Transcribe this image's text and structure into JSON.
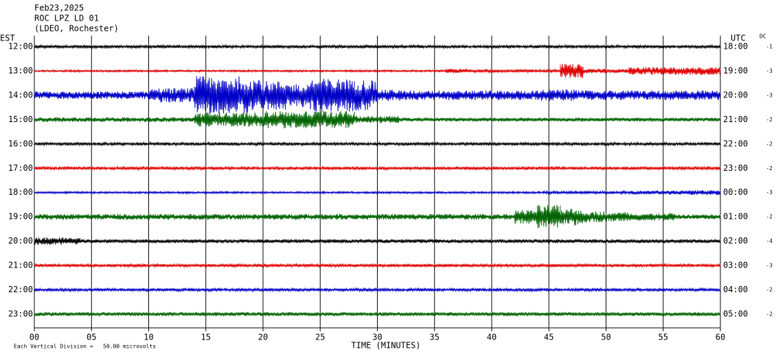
{
  "chart_data": {
    "type": "helicorder",
    "date": "Feb23,2025",
    "station": "ROC LPZ LD 01",
    "network": "(LDEO, Rochester)",
    "left_axis_label": "EST",
    "right_axis_label": "UTC",
    "dc_label": "DC",
    "x_label": "TIME (MINUTES)",
    "scale_note": "Each Vertical Division =   50.00 microvolts",
    "xlim": [
      0,
      60
    ],
    "xticks": [
      {
        "value": 0,
        "label": "00"
      },
      {
        "value": 5,
        "label": "05"
      },
      10,
      15,
      20,
      25,
      30,
      35,
      40,
      45,
      50,
      55,
      60
    ],
    "grid": true,
    "rows": [
      {
        "est": "12:00",
        "utc": "18:00",
        "dc": -1,
        "color": "#000000",
        "values": [
          3,
          3,
          3,
          3,
          3,
          3,
          3,
          3,
          3,
          3,
          3,
          3,
          3,
          3,
          3,
          3,
          3,
          3,
          3,
          3,
          3,
          3,
          3,
          3,
          3,
          3,
          3,
          3,
          3,
          3
        ]
      },
      {
        "est": "13:00",
        "utc": "19:00",
        "dc": -3,
        "color": "#e00000",
        "values": [
          2,
          2,
          2,
          2,
          2,
          2,
          2,
          2,
          2,
          2,
          2,
          2,
          2,
          2,
          2,
          2,
          2,
          2,
          5,
          3,
          3,
          3,
          3,
          15,
          5,
          4,
          8,
          8,
          8,
          8
        ]
      },
      {
        "est": "14:00",
        "utc": "20:00",
        "dc": -3,
        "color": "#0000c8",
        "values": [
          8,
          8,
          8,
          8,
          8,
          15,
          15,
          40,
          40,
          38,
          30,
          25,
          35,
          35,
          33,
          12,
          10,
          10,
          10,
          10,
          10,
          10,
          12,
          12,
          10,
          10,
          10,
          10,
          10,
          10
        ]
      },
      {
        "est": "15:00",
        "utc": "21:00",
        "dc": -2,
        "color": "#006400",
        "values": [
          5,
          5,
          5,
          5,
          5,
          5,
          5,
          15,
          15,
          15,
          18,
          18,
          18,
          18,
          8,
          8,
          4,
          4,
          4,
          4,
          4,
          4,
          4,
          4,
          4,
          4,
          4,
          4,
          4,
          4
        ]
      },
      {
        "est": "16:00",
        "utc": "22:00",
        "dc": -2,
        "color": "#000000",
        "values": [
          3,
          3,
          3,
          3,
          3,
          3,
          3,
          3,
          3,
          3,
          3,
          3,
          3,
          3,
          3,
          3,
          3,
          3,
          3,
          3,
          3,
          3,
          3,
          3,
          3,
          3,
          3,
          3,
          3,
          3
        ]
      },
      {
        "est": "17:00",
        "utc": "23:00",
        "dc": -2,
        "color": "#e00000",
        "values": [
          3,
          3,
          3,
          3,
          3,
          3,
          3,
          3,
          3,
          3,
          3,
          3,
          3,
          3,
          3,
          3,
          3,
          3,
          3,
          3,
          3,
          3,
          3,
          3,
          3,
          3,
          3,
          3,
          3,
          3
        ]
      },
      {
        "est": "18:00",
        "utc": "00:00",
        "dc": -3,
        "color": "#0000c8",
        "values": [
          2,
          2,
          2,
          2,
          2,
          2,
          2,
          2,
          2,
          2,
          2,
          2,
          2,
          2,
          2,
          2,
          2,
          2,
          2,
          2,
          2,
          2,
          3,
          3,
          3,
          3,
          4,
          4,
          5,
          5
        ]
      },
      {
        "est": "19:00",
        "utc": "01:00",
        "dc": -2,
        "color": "#006400",
        "values": [
          6,
          6,
          6,
          6,
          6,
          6,
          6,
          6,
          6,
          6,
          6,
          6,
          6,
          6,
          6,
          6,
          6,
          6,
          6,
          6,
          6,
          15,
          25,
          18,
          12,
          10,
          8,
          8,
          5,
          5
        ]
      },
      {
        "est": "20:00",
        "utc": "02:00",
        "dc": -4,
        "color": "#000000",
        "values": [
          8,
          8,
          4,
          4,
          4,
          4,
          4,
          4,
          4,
          4,
          4,
          4,
          4,
          4,
          4,
          4,
          4,
          4,
          4,
          4,
          4,
          4,
          4,
          4,
          4,
          4,
          4,
          4,
          4,
          4
        ]
      },
      {
        "est": "21:00",
        "utc": "03:00",
        "dc": -3,
        "color": "#e00000",
        "values": [
          3,
          3,
          3,
          3,
          3,
          3,
          3,
          3,
          3,
          3,
          3,
          3,
          3,
          3,
          3,
          3,
          3,
          3,
          3,
          3,
          3,
          3,
          3,
          3,
          3,
          3,
          3,
          3,
          3,
          3
        ]
      },
      {
        "est": "22:00",
        "utc": "04:00",
        "dc": -2,
        "color": "#0000c8",
        "values": [
          3,
          3,
          3,
          3,
          3,
          3,
          3,
          3,
          3,
          3,
          3,
          3,
          3,
          3,
          3,
          3,
          3,
          3,
          3,
          3,
          3,
          3,
          3,
          3,
          3,
          3,
          3,
          3,
          3,
          3
        ]
      },
      {
        "est": "23:00",
        "utc": "05:00",
        "dc": -2,
        "color": "#006400",
        "values": [
          4,
          4,
          4,
          4,
          4,
          4,
          4,
          4,
          4,
          4,
          4,
          4,
          4,
          4,
          4,
          4,
          4,
          4,
          4,
          4,
          4,
          4,
          4,
          4,
          4,
          4,
          4,
          4,
          4,
          4
        ]
      }
    ]
  }
}
